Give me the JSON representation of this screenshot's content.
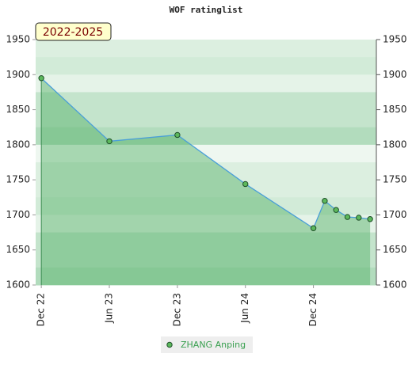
{
  "chart_data": {
    "type": "line",
    "title": "WOF ratinglist",
    "badge": "2022-2025",
    "x": [
      "2022-12",
      "2023-06",
      "2023-12",
      "2024-06",
      "2024-12",
      "2025-01",
      "2025-02",
      "2025-03",
      "2025-04",
      "2025-05"
    ],
    "xticks": [
      {
        "value": "2022-12",
        "label": "Dec 22"
      },
      {
        "value": "2023-06",
        "label": "Jun 23"
      },
      {
        "value": "2023-12",
        "label": "Dec 23"
      },
      {
        "value": "2024-06",
        "label": "Jun 24"
      },
      {
        "value": "2024-12",
        "label": "Dec 24"
      }
    ],
    "series": [
      {
        "name": "ZHANG Anping",
        "color": "#4a9fd8",
        "marker_color": "#5cb85c",
        "values": [
          1895,
          1805,
          1814,
          1744,
          1681,
          1720,
          1707,
          1697,
          1696,
          1694
        ]
      }
    ],
    "ylim": [
      1600,
      1950
    ],
    "yticks": [
      1600,
      1650,
      1700,
      1750,
      1800,
      1850,
      1900,
      1950
    ],
    "y2lim": [
      1600,
      1950
    ],
    "y2ticks": [
      1600,
      1650,
      1700,
      1750,
      1800,
      1850,
      1900,
      1950
    ]
  }
}
